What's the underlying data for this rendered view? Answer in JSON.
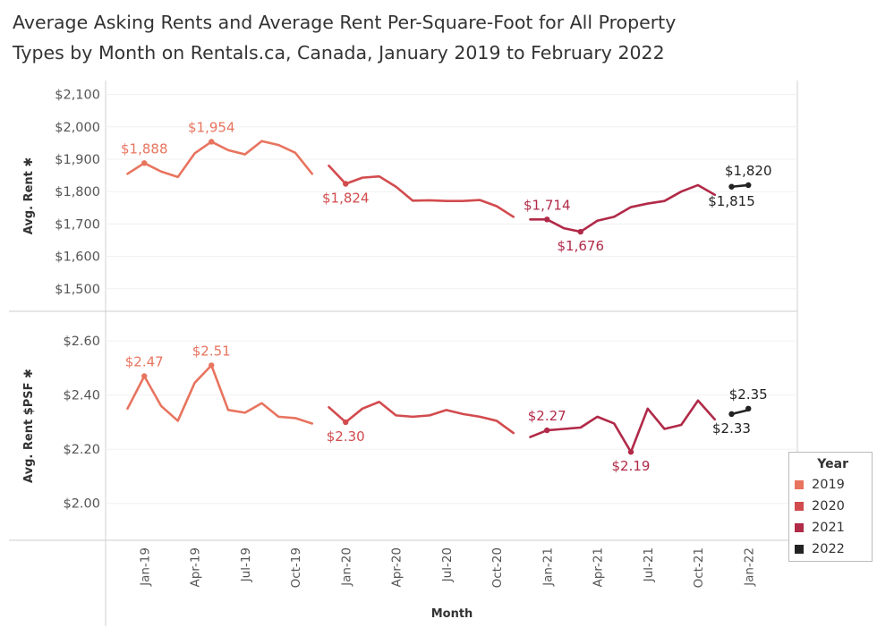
{
  "title_lines": [
    "Average Asking Rents and Average Rent Per-Square-Foot for All Property",
    "Types by Month on Rentals.ca, Canada, January 2019 to February 2022"
  ],
  "legend": {
    "title": "Year",
    "items": [
      {
        "label": "2019",
        "color": "#e8745f"
      },
      {
        "label": "2020",
        "color": "#d24b4e"
      },
      {
        "label": "2021",
        "color": "#b12a48"
      },
      {
        "label": "2022",
        "color": "#222222"
      }
    ]
  },
  "chart_data": {
    "type": "line",
    "xlabel": "Month",
    "x_tick_labels": [
      "Jan-19",
      "Apr-19",
      "Jul-19",
      "Oct-19",
      "Jan-20",
      "Apr-20",
      "Jul-20",
      "Oct-20",
      "Jan-21",
      "Apr-21",
      "Jul-21",
      "Oct-21",
      "Jan-22"
    ],
    "panels": [
      {
        "ylabel": "Avg. Rent",
        "ylim": [
          1480,
          2110
        ],
        "y_ticks": [
          1500,
          1600,
          1700,
          1800,
          1900,
          2000,
          2100
        ],
        "y_tick_labels": [
          "$1,500",
          "$1,600",
          "$1,700",
          "$1,800",
          "$1,900",
          "$2,000",
          "$2,100"
        ],
        "series": [
          {
            "name": "2019",
            "start_month": 0,
            "values": [
              1855,
              1888,
              1862,
              1845,
              1918,
              1954,
              1928,
              1915,
              1956,
              1944,
              1920,
              1855
            ]
          },
          {
            "name": "2020",
            "start_month": 12,
            "values": [
              1880,
              1824,
              1843,
              1847,
              1815,
              1772,
              1773,
              1771,
              1771,
              1774,
              1755,
              1722
            ]
          },
          {
            "name": "2021",
            "start_month": 24,
            "values": [
              1714,
              1714,
              1687,
              1676,
              1710,
              1722,
              1752,
              1763,
              1771,
              1800,
              1820,
              1790
            ]
          },
          {
            "name": "2022",
            "start_month": 36,
            "values": [
              1815,
              1820
            ]
          }
        ],
        "data_labels": [
          {
            "text": "$1,888",
            "month": 1,
            "value": 1888,
            "series": "2019",
            "pos": "above"
          },
          {
            "text": "$1,954",
            "month": 5,
            "value": 1954,
            "series": "2019",
            "pos": "above"
          },
          {
            "text": "$1,824",
            "month": 13,
            "value": 1824,
            "series": "2020",
            "pos": "below"
          },
          {
            "text": "$1,714",
            "month": 25,
            "value": 1714,
            "series": "2021",
            "pos": "above"
          },
          {
            "text": "$1,676",
            "month": 27,
            "value": 1676,
            "series": "2021",
            "pos": "below"
          },
          {
            "text": "$1,815",
            "month": 36,
            "value": 1815,
            "series": "2022",
            "pos": "below"
          },
          {
            "text": "$1,820",
            "month": 37,
            "value": 1820,
            "series": "2022",
            "pos": "above"
          }
        ]
      },
      {
        "ylabel": "Avg. Rent $PSF",
        "ylim": [
          1.9,
          2.66
        ],
        "y_ticks": [
          2.0,
          2.2,
          2.4,
          2.6
        ],
        "y_tick_labels": [
          "$2.00",
          "$2.20",
          "$2.40",
          "$2.60"
        ],
        "series": [
          {
            "name": "2019",
            "start_month": 0,
            "values": [
              2.35,
              2.47,
              2.36,
              2.305,
              2.445,
              2.51,
              2.345,
              2.335,
              2.37,
              2.32,
              2.315,
              2.295
            ]
          },
          {
            "name": "2020",
            "start_month": 12,
            "values": [
              2.355,
              2.3,
              2.35,
              2.375,
              2.325,
              2.32,
              2.325,
              2.345,
              2.33,
              2.32,
              2.305,
              2.26
            ]
          },
          {
            "name": "2021",
            "start_month": 24,
            "values": [
              2.245,
              2.27,
              2.275,
              2.28,
              2.32,
              2.295,
              2.19,
              2.35,
              2.275,
              2.29,
              2.38,
              2.31
            ]
          },
          {
            "name": "2022",
            "start_month": 36,
            "values": [
              2.33,
              2.345
            ]
          }
        ],
        "data_labels": [
          {
            "text": "$2.47",
            "month": 1,
            "value": 2.47,
            "series": "2019",
            "pos": "above"
          },
          {
            "text": "$2.51",
            "month": 5,
            "value": 2.51,
            "series": "2019",
            "pos": "above"
          },
          {
            "text": "$2.30",
            "month": 13,
            "value": 2.3,
            "series": "2020",
            "pos": "below"
          },
          {
            "text": "$2.27",
            "month": 25,
            "value": 2.27,
            "series": "2021",
            "pos": "above"
          },
          {
            "text": "$2.19",
            "month": 30,
            "value": 2.19,
            "series": "2021",
            "pos": "below"
          },
          {
            "text": "$2.33",
            "month": 36,
            "value": 2.33,
            "series": "2022",
            "pos": "below"
          },
          {
            "text": "$2.35",
            "month": 37,
            "value": 2.35,
            "series": "2022",
            "pos": "above"
          }
        ]
      }
    ]
  }
}
